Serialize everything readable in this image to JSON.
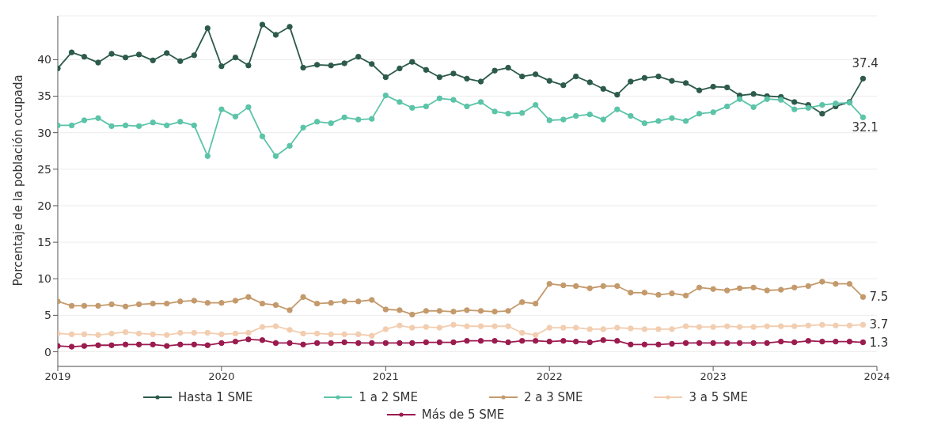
{
  "chart_data": {
    "type": "line",
    "ylabel": "Porcentaje de la población ocupada",
    "x": [
      "2019-01",
      "2019-02",
      "2019-03",
      "2019-04",
      "2019-05",
      "2019-06",
      "2019-07",
      "2019-08",
      "2019-09",
      "2019-10",
      "2019-11",
      "2019-12",
      "2020-01",
      "2020-02",
      "2020-03",
      "2020-04",
      "2020-05",
      "2020-06",
      "2020-07",
      "2020-08",
      "2020-09",
      "2020-10",
      "2020-11",
      "2020-12",
      "2021-01",
      "2021-02",
      "2021-03",
      "2021-04",
      "2021-05",
      "2021-06",
      "2021-07",
      "2021-08",
      "2021-09",
      "2021-10",
      "2021-11",
      "2021-12",
      "2022-01",
      "2022-02",
      "2022-03",
      "2022-04",
      "2022-05",
      "2022-06",
      "2022-07",
      "2022-08",
      "2022-09",
      "2022-10",
      "2022-11",
      "2022-12",
      "2023-01",
      "2023-02",
      "2023-03",
      "2023-04",
      "2023-05",
      "2023-06",
      "2023-07",
      "2023-08",
      "2023-09",
      "2023-10",
      "2023-11",
      "2023-12"
    ],
    "series": [
      {
        "name": "Hasta 1 SME",
        "color": "#2d5b4a",
        "values": [
          38.8,
          41.0,
          40.4,
          39.6,
          40.8,
          40.3,
          40.7,
          39.9,
          40.9,
          39.8,
          40.6,
          44.3,
          39.1,
          40.3,
          39.2,
          44.8,
          43.4,
          44.5,
          38.9,
          39.3,
          39.2,
          39.5,
          40.4,
          39.4,
          37.6,
          38.8,
          39.7,
          38.6,
          37.6,
          38.1,
          37.4,
          37.0,
          38.5,
          38.9,
          37.7,
          38.0,
          37.1,
          36.5,
          37.7,
          36.9,
          36.0,
          35.2,
          37.0,
          37.5,
          37.7,
          37.1,
          36.8,
          35.8,
          36.3,
          36.2,
          35.1,
          35.3,
          35.0,
          34.9,
          34.2,
          33.8,
          32.6,
          33.6,
          34.2,
          37.4
        ],
        "value_labels": [
          null,
          null,
          null,
          null,
          null,
          null,
          null,
          null,
          null,
          null,
          null,
          null,
          null,
          null,
          null,
          null,
          null,
          null,
          null,
          null,
          null,
          null,
          null,
          null,
          null,
          null,
          null,
          null,
          null,
          null,
          null,
          null,
          null,
          null,
          null,
          null,
          null,
          null,
          null,
          null,
          null,
          null,
          null,
          null,
          null,
          null,
          null,
          null,
          null,
          null,
          null,
          null,
          null,
          null,
          null,
          null,
          null,
          null,
          null,
          "37.4"
        ]
      },
      {
        "name": "1 a 2 SME",
        "color": "#5cc4a8",
        "values": [
          31.0,
          31.0,
          31.7,
          32.0,
          30.9,
          31.0,
          30.9,
          31.4,
          31.0,
          31.5,
          31.0,
          26.8,
          33.2,
          32.2,
          33.5,
          29.5,
          26.8,
          28.2,
          30.7,
          31.5,
          31.3,
          32.1,
          31.8,
          31.9,
          35.1,
          34.2,
          33.4,
          33.6,
          34.7,
          34.5,
          33.6,
          34.2,
          32.9,
          32.6,
          32.7,
          33.8,
          31.7,
          31.8,
          32.3,
          32.5,
          31.8,
          33.2,
          32.3,
          31.3,
          31.6,
          32.0,
          31.6,
          32.6,
          32.8,
          33.6,
          34.6,
          33.5,
          34.6,
          34.5,
          33.2,
          33.4,
          33.8,
          34.0,
          34.1,
          32.1
        ],
        "value_labels": [
          null,
          null,
          null,
          null,
          null,
          null,
          null,
          null,
          null,
          null,
          null,
          null,
          null,
          null,
          null,
          null,
          null,
          null,
          null,
          null,
          null,
          null,
          null,
          null,
          null,
          null,
          null,
          null,
          null,
          null,
          null,
          null,
          null,
          null,
          null,
          null,
          null,
          null,
          null,
          null,
          null,
          null,
          null,
          null,
          null,
          null,
          null,
          null,
          null,
          null,
          null,
          null,
          null,
          null,
          null,
          null,
          null,
          null,
          null,
          "32.1"
        ]
      },
      {
        "name": "2 a 3 SME",
        "color": "#c49a6c",
        "values": [
          6.9,
          6.3,
          6.3,
          6.3,
          6.5,
          6.2,
          6.5,
          6.6,
          6.6,
          6.9,
          7.0,
          6.7,
          6.7,
          7.0,
          7.5,
          6.6,
          6.4,
          5.7,
          7.5,
          6.6,
          6.7,
          6.9,
          6.9,
          7.1,
          5.8,
          5.7,
          5.1,
          5.6,
          5.6,
          5.5,
          5.7,
          5.6,
          5.5,
          5.6,
          6.8,
          6.6,
          9.3,
          9.1,
          9.0,
          8.7,
          9.0,
          9.0,
          8.1,
          8.1,
          7.8,
          8.0,
          7.7,
          8.8,
          8.6,
          8.4,
          8.7,
          8.8,
          8.4,
          8.5,
          8.8,
          9.0,
          9.6,
          9.3,
          9.3,
          7.5
        ],
        "value_labels": [
          null,
          null,
          null,
          null,
          null,
          null,
          null,
          null,
          null,
          null,
          null,
          null,
          null,
          null,
          null,
          null,
          null,
          null,
          null,
          null,
          null,
          null,
          null,
          null,
          null,
          null,
          null,
          null,
          null,
          null,
          null,
          null,
          null,
          null,
          null,
          null,
          null,
          null,
          null,
          null,
          null,
          null,
          null,
          null,
          null,
          null,
          null,
          null,
          null,
          null,
          null,
          null,
          null,
          null,
          null,
          null,
          null,
          null,
          null,
          "7.5"
        ]
      },
      {
        "name": "3 a 5 SME",
        "color": "#f2cdb0",
        "values": [
          2.5,
          2.4,
          2.4,
          2.3,
          2.5,
          2.7,
          2.5,
          2.4,
          2.3,
          2.6,
          2.6,
          2.6,
          2.4,
          2.5,
          2.6,
          3.4,
          3.5,
          3.0,
          2.5,
          2.5,
          2.4,
          2.4,
          2.4,
          2.2,
          3.1,
          3.6,
          3.3,
          3.4,
          3.3,
          3.7,
          3.5,
          3.5,
          3.5,
          3.5,
          2.6,
          2.3,
          3.3,
          3.3,
          3.3,
          3.1,
          3.1,
          3.3,
          3.2,
          3.1,
          3.1,
          3.1,
          3.5,
          3.4,
          3.4,
          3.5,
          3.4,
          3.4,
          3.5,
          3.5,
          3.5,
          3.6,
          3.7,
          3.6,
          3.6,
          3.7
        ],
        "value_labels": [
          null,
          null,
          null,
          null,
          null,
          null,
          null,
          null,
          null,
          null,
          null,
          null,
          null,
          null,
          null,
          null,
          null,
          null,
          null,
          null,
          null,
          null,
          null,
          null,
          null,
          null,
          null,
          null,
          null,
          null,
          null,
          null,
          null,
          null,
          null,
          null,
          null,
          null,
          null,
          null,
          null,
          null,
          null,
          null,
          null,
          null,
          null,
          null,
          null,
          null,
          null,
          null,
          null,
          null,
          null,
          null,
          null,
          null,
          null,
          "3.7"
        ]
      },
      {
        "name": "Más de 5 SME",
        "color": "#9b1b4f",
        "values": [
          0.8,
          0.7,
          0.8,
          0.9,
          0.9,
          1.0,
          1.0,
          1.0,
          0.8,
          1.0,
          1.0,
          0.9,
          1.2,
          1.4,
          1.7,
          1.6,
          1.2,
          1.2,
          1.0,
          1.2,
          1.2,
          1.3,
          1.2,
          1.2,
          1.2,
          1.2,
          1.2,
          1.3,
          1.3,
          1.3,
          1.5,
          1.5,
          1.5,
          1.3,
          1.5,
          1.5,
          1.4,
          1.5,
          1.4,
          1.3,
          1.6,
          1.5,
          1.0,
          1.0,
          1.0,
          1.1,
          1.2,
          1.2,
          1.2,
          1.2,
          1.2,
          1.2,
          1.2,
          1.4,
          1.3,
          1.5,
          1.4,
          1.4,
          1.4,
          1.3
        ],
        "value_labels": [
          null,
          null,
          null,
          null,
          null,
          null,
          null,
          null,
          null,
          null,
          null,
          null,
          null,
          null,
          null,
          null,
          null,
          null,
          null,
          null,
          null,
          null,
          null,
          null,
          null,
          null,
          null,
          null,
          null,
          null,
          null,
          null,
          null,
          null,
          null,
          null,
          null,
          null,
          null,
          null,
          null,
          null,
          null,
          null,
          null,
          null,
          null,
          null,
          null,
          null,
          null,
          null,
          null,
          null,
          null,
          null,
          null,
          null,
          null,
          "1.3"
        ]
      }
    ],
    "xlim": [
      "2019-01",
      "2024-01"
    ],
    "xticks": [
      "2019",
      "2020",
      "2021",
      "2022",
      "2023",
      "2024"
    ],
    "ylim": [
      -2,
      46
    ],
    "yticks": [
      0,
      5,
      10,
      15,
      20,
      25,
      30,
      35,
      40
    ],
    "grid": "y",
    "legend": "bottom",
    "marker": "circle",
    "line_style": "solid"
  }
}
